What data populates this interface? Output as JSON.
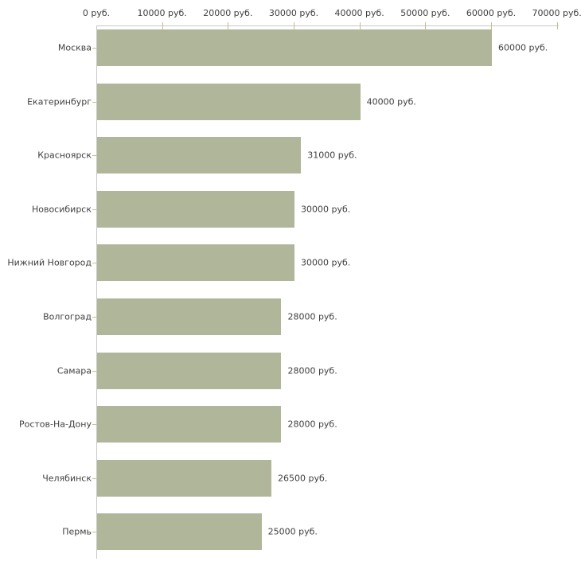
{
  "colors": {
    "bar_fill": "#b0b69a",
    "axis_line": "#c8c8c8",
    "tick_mark": "#c6bc8e",
    "text": "#3f3f3f",
    "background": "#ffffff"
  },
  "chart_data": {
    "type": "bar",
    "orientation": "horizontal",
    "title": "",
    "xlabel": "",
    "ylabel": "",
    "unit": "руб.",
    "xlim": [
      0,
      70000
    ],
    "grid": false,
    "legend": false,
    "categories": [
      "Москва",
      "Екатеринбург",
      "Красноярск",
      "Новосибирск",
      "Нижний Новгород",
      "Волгоград",
      "Самара",
      "Ростов-На-Дону",
      "Челябинск",
      "Пермь"
    ],
    "values": [
      60000,
      40000,
      31000,
      30000,
      30000,
      28000,
      28000,
      28000,
      26500,
      25000
    ],
    "value_labels": [
      "60000 руб.",
      "40000 руб.",
      "31000 руб.",
      "30000 руб.",
      "30000 руб.",
      "28000 руб.",
      "28000 руб.",
      "28000 руб.",
      "26500 руб.",
      "25000 руб."
    ],
    "x_tick_values": [
      0,
      10000,
      20000,
      30000,
      40000,
      50000,
      60000,
      70000
    ],
    "x_tick_labels": [
      "0 руб.",
      "10000 руб.",
      "20000 руб.",
      "30000 руб.",
      "40000 руб.",
      "50000 руб.",
      "60000 руб.",
      "70000 руб."
    ]
  }
}
